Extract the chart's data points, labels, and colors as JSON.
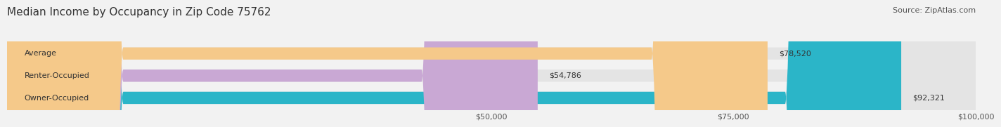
{
  "title": "Median Income by Occupancy in Zip Code 75762",
  "source": "Source: ZipAtlas.com",
  "categories": [
    "Owner-Occupied",
    "Renter-Occupied",
    "Average"
  ],
  "values": [
    92321,
    54786,
    78520
  ],
  "labels": [
    "$92,321",
    "$54,786",
    "$78,520"
  ],
  "bar_colors": [
    "#2bb5c8",
    "#c9a8d4",
    "#f5c98a"
  ],
  "background_color": "#f2f2f2",
  "bar_bg_color": "#e4e4e4",
  "xlim": [
    0,
    100000
  ],
  "xticks": [
    50000,
    75000,
    100000
  ],
  "xticklabels": [
    "$50,000",
    "$75,000",
    "$100,000"
  ],
  "title_fontsize": 11,
  "source_fontsize": 8,
  "label_fontsize": 8,
  "bar_height": 0.55,
  "rounding_size": 12000
}
